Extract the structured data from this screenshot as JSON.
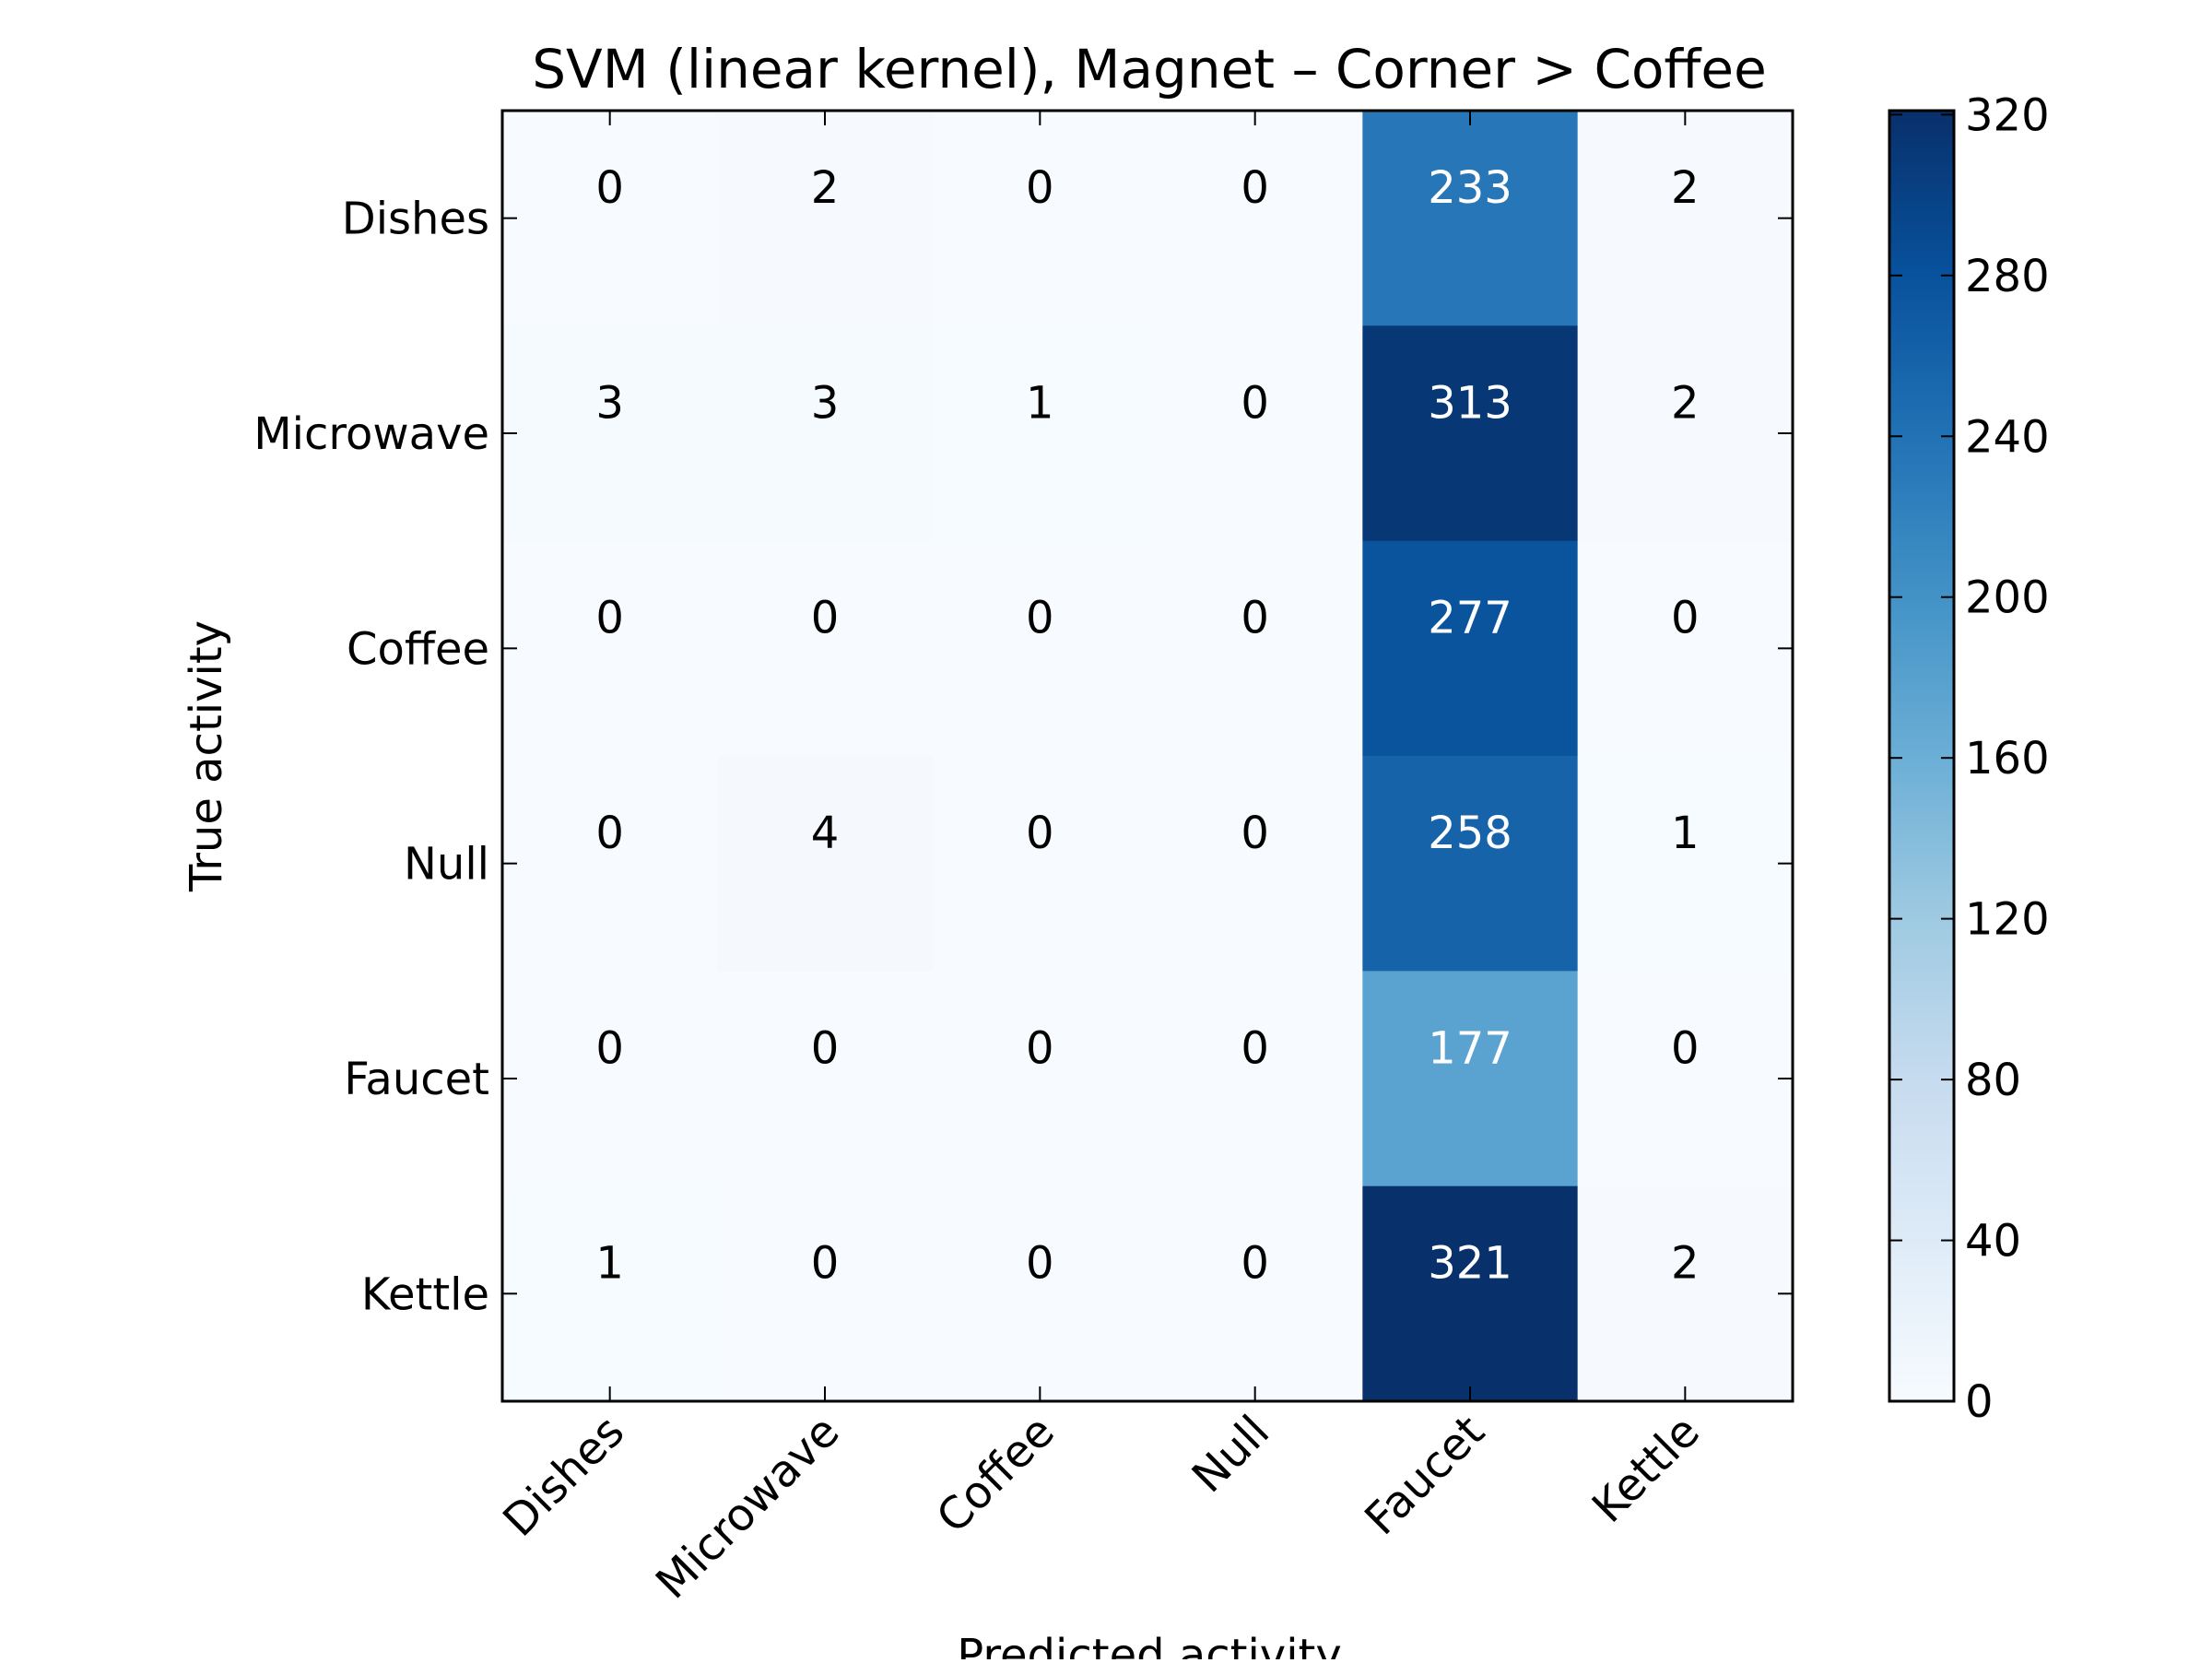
{
  "chart_data": {
    "type": "heatmap",
    "title": "SVM (linear kernel), Magnet – Corner > Coffee",
    "xlabel": "Predicted activity",
    "ylabel": "True activity",
    "x_categories": [
      "Dishes",
      "Microwave",
      "Coffee",
      "Null",
      "Faucet",
      "Kettle"
    ],
    "y_categories": [
      "Dishes",
      "Microwave",
      "Coffee",
      "Null",
      "Faucet",
      "Kettle"
    ],
    "values": [
      [
        0,
        2,
        0,
        0,
        233,
        2
      ],
      [
        3,
        3,
        1,
        0,
        313,
        2
      ],
      [
        0,
        0,
        0,
        0,
        277,
        0
      ],
      [
        0,
        4,
        0,
        0,
        258,
        1
      ],
      [
        0,
        0,
        0,
        0,
        177,
        0
      ],
      [
        1,
        0,
        0,
        0,
        321,
        2
      ]
    ],
    "colormap": "Blues",
    "colorbar": {
      "range": [
        0,
        321
      ],
      "ticks": [
        0,
        40,
        80,
        120,
        160,
        200,
        240,
        280,
        320
      ]
    },
    "grid": false,
    "legend": "colorbar-right"
  }
}
